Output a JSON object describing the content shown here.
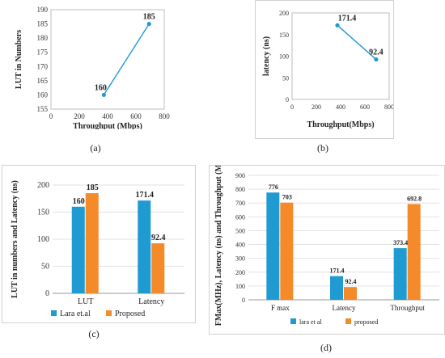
{
  "chart_data": [
    {
      "type": "line",
      "xlabel": "Throughput (Mbps)",
      "ylabel": "LUT in Numbers",
      "xlim": [
        0,
        800
      ],
      "ylim": [
        155,
        190
      ],
      "xticks": [
        "0",
        "200",
        "400",
        "600",
        "800"
      ],
      "yticks": [
        "155",
        "160",
        "165",
        "170",
        "175",
        "180",
        "185",
        "190"
      ],
      "x": [
        373.4,
        692.8
      ],
      "values": [
        160,
        185
      ],
      "data_labels": [
        "160",
        "185"
      ],
      "color": "#1f9bd1",
      "caption": "(a)"
    },
    {
      "type": "line",
      "xlabel": "Throughput(Mbps)",
      "ylabel": "latency (ns)",
      "xlim": [
        0,
        800
      ],
      "ylim": [
        0,
        200
      ],
      "xticks": [
        "0",
        "200",
        "400",
        "600",
        "800"
      ],
      "yticks": [
        "0",
        "50",
        "100",
        "150",
        "200"
      ],
      "x": [
        373.4,
        692.8
      ],
      "values": [
        171.4,
        92.4
      ],
      "data_labels": [
        "171.4",
        "92.4"
      ],
      "color": "#1f9bd1",
      "caption": "(b)"
    },
    {
      "type": "bar",
      "ylabel": "LUT in numbers and Latency (ns)",
      "ylim": [
        0,
        200
      ],
      "yticks": [
        "0",
        "50",
        "100",
        "150",
        "200"
      ],
      "categories": [
        "LUT",
        "Latency"
      ],
      "series": [
        {
          "name": "Lara et.al",
          "values": [
            160,
            171.4
          ],
          "labels": [
            "160",
            "171.4"
          ],
          "color": "#1f9bd1"
        },
        {
          "name": "Proposed",
          "values": [
            185,
            92.4
          ],
          "labels": [
            "185",
            "92.4"
          ],
          "color": "#f58a2a"
        }
      ],
      "legend": "bottom",
      "caption": "(c)"
    },
    {
      "type": "bar",
      "ylabel": "FMax(MHz), Latency (ns) and Throughput (Mbps)",
      "ylim": [
        0,
        900
      ],
      "yticks": [
        "0",
        "100",
        "200",
        "300",
        "400",
        "500",
        "600",
        "700",
        "800",
        "900"
      ],
      "categories": [
        "F max",
        "Latency",
        "Throughput"
      ],
      "series": [
        {
          "name": "lara et al",
          "values": [
            776,
            171.4,
            373.4
          ],
          "labels": [
            "776",
            "171.4",
            "373.4"
          ],
          "color": "#1f9bd1"
        },
        {
          "name": "proposed",
          "values": [
            703,
            92.4,
            692.8
          ],
          "labels": [
            "703",
            "92.4",
            "692.8"
          ],
          "color": "#f58a2a"
        }
      ],
      "legend": "bottom",
      "caption": "(d)"
    }
  ]
}
